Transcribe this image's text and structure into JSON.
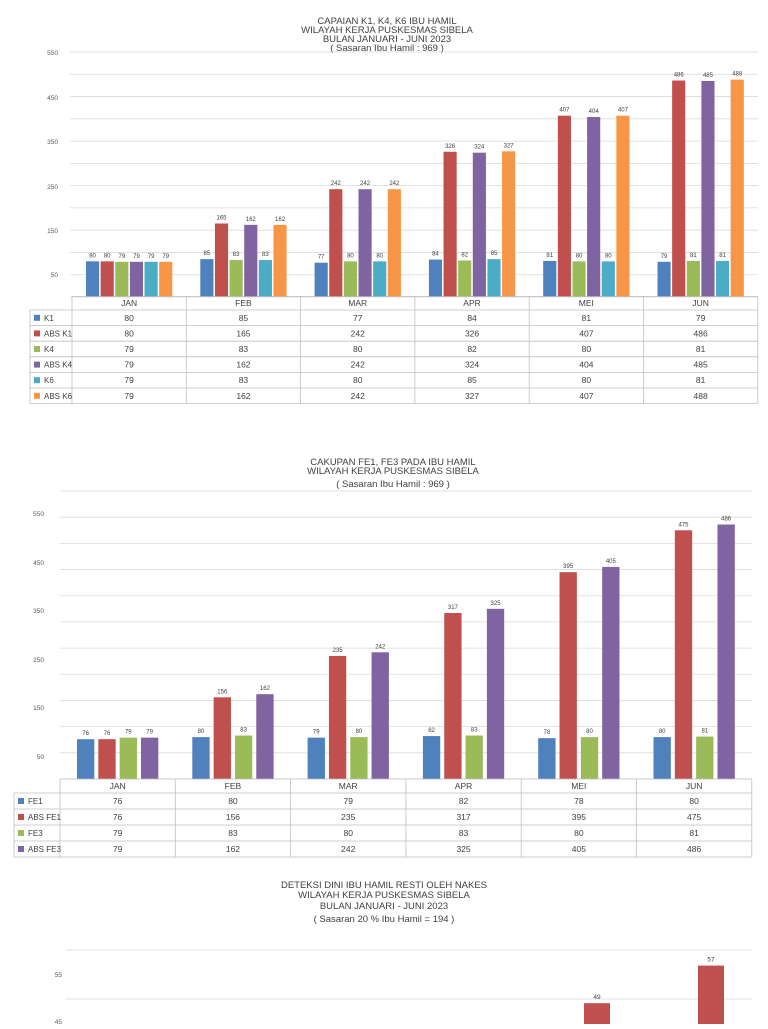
{
  "chart_data": [
    {
      "type": "bar",
      "title_lines": [
        "CAPAIAN K1, K4, K6 IBU HAMIL",
        "WILAYAH KERJA PUSKESMAS SIBELA",
        "BULAN JANUARI - JUNI 2023",
        "( Sasaran Ibu Hamil : 969 )"
      ],
      "categories": [
        "JAN",
        "FEB",
        "MAR",
        "APR",
        "MEI",
        "JUN"
      ],
      "y_ticks": [
        "550",
        "450",
        "350",
        "250",
        "150",
        "50"
      ],
      "ylim": [
        0,
        550
      ],
      "series": [
        {
          "name": "K1",
          "color": "#4f81bd",
          "values": [
            80,
            85,
            77,
            84,
            81,
            79
          ]
        },
        {
          "name": "ABS K1",
          "color": "#c0504d",
          "values": [
            80,
            165,
            242,
            326,
            407,
            486
          ]
        },
        {
          "name": "K4",
          "color": "#9bbb59",
          "values": [
            79,
            83,
            80,
            82,
            80,
            81
          ]
        },
        {
          "name": "ABS K4",
          "color": "#8064a2",
          "values": [
            79,
            162,
            242,
            324,
            404,
            485
          ]
        },
        {
          "name": "K6",
          "color": "#4bacc6",
          "values": [
            79,
            83,
            80,
            85,
            80,
            81
          ]
        },
        {
          "name": "ABS K6",
          "color": "#f79646",
          "values": [
            79,
            162,
            242,
            327,
            407,
            488
          ]
        }
      ]
    },
    {
      "type": "bar",
      "title_lines": [
        "CAKUPAN FE1, FE3 PADA IBU HAMIL",
        "WILAYAH KERJA PUSKESMAS SIBELA",
        "( Sasaran Ibu Hamil : 969 )"
      ],
      "categories": [
        "JAN",
        "FEB",
        "MAR",
        "APR",
        "MEI",
        "JUN"
      ],
      "y_ticks": [
        "550",
        "450",
        "350",
        "250",
        "150",
        "50"
      ],
      "ylim": [
        0,
        550
      ],
      "series": [
        {
          "name": "FE1",
          "color": "#4f81bd",
          "values": [
            76,
            80,
            79,
            82,
            78,
            80
          ]
        },
        {
          "name": "ABS FE1",
          "color": "#c0504d",
          "values": [
            76,
            156,
            235,
            317,
            395,
            475
          ]
        },
        {
          "name": "FE3",
          "color": "#9bbb59",
          "values": [
            79,
            83,
            80,
            83,
            80,
            81
          ]
        },
        {
          "name": "ABS FE3",
          "color": "#8064a2",
          "values": [
            79,
            162,
            242,
            325,
            405,
            486
          ]
        }
      ]
    },
    {
      "type": "bar",
      "title_lines": [
        "DETEKSI DINI IBU HAMIL RESTI OLEH NAKES",
        "WILAYAH KERJA PUSKESMAS SIBELA",
        "BULAN JANUARI - JUNI 2023",
        "( Sasaran 20 % Ibu Hamil = 194 )"
      ],
      "y_ticks": [
        "55",
        "45"
      ],
      "visible_bar_labels": [
        "49",
        "57"
      ],
      "visible_bar_values": [
        49,
        57
      ],
      "bar_color": "#c0504d"
    }
  ]
}
